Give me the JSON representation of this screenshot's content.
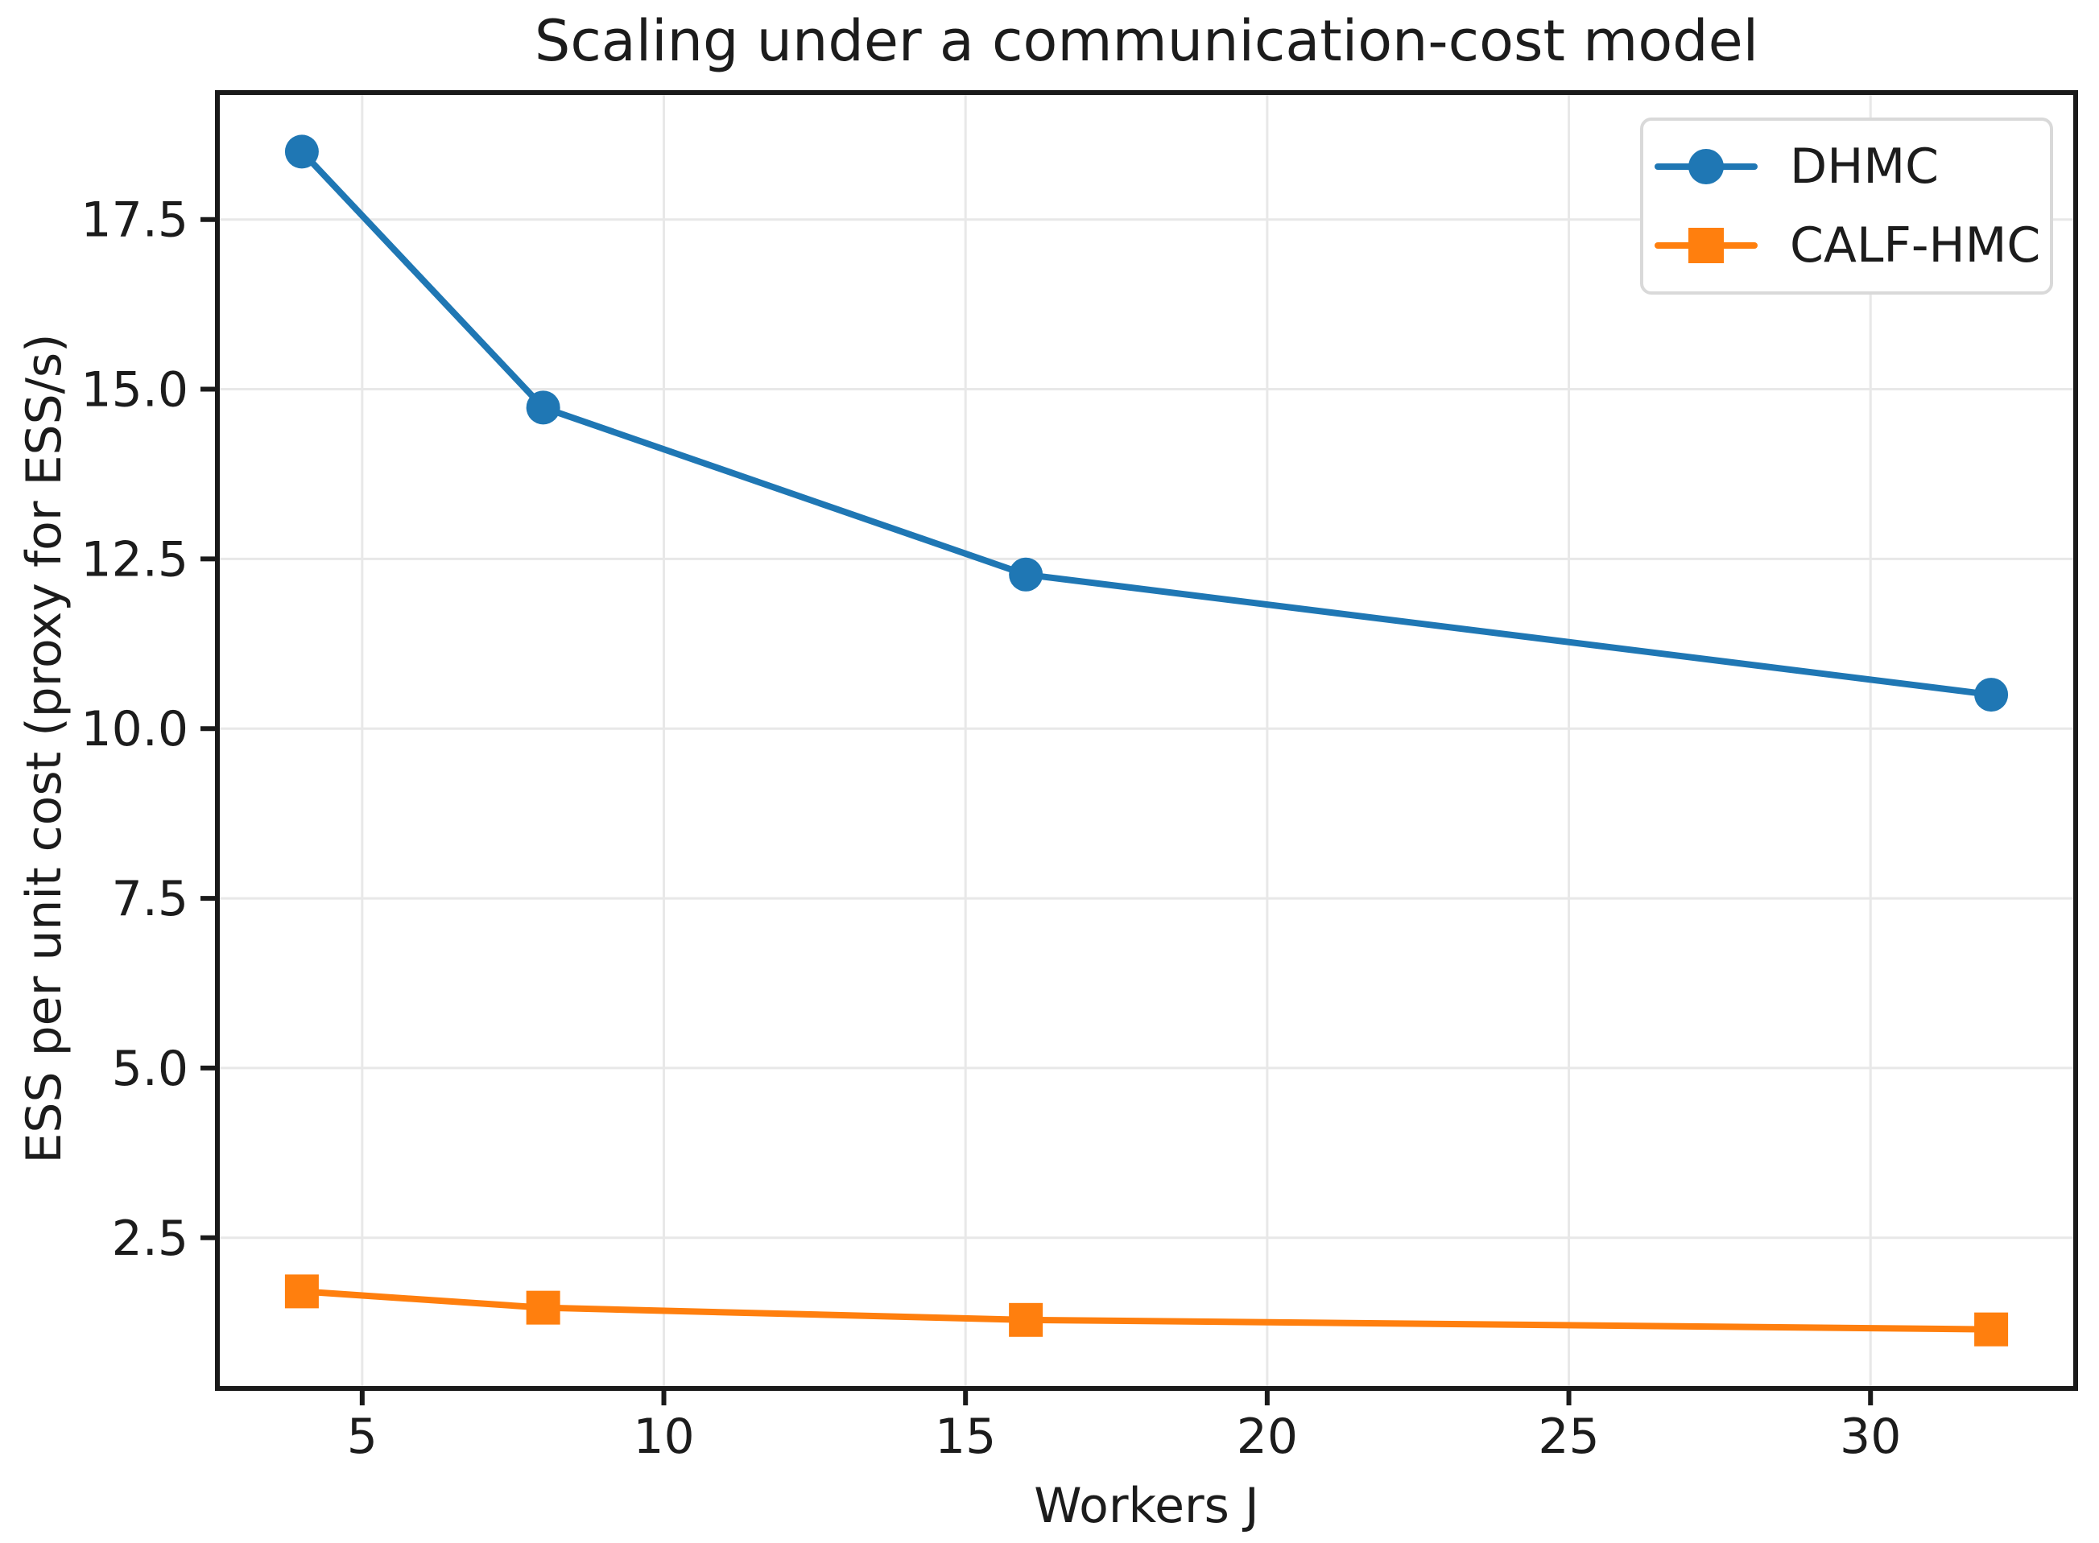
{
  "title": "Scaling under a communication-cost model",
  "chart_data": {
    "type": "line",
    "title": "Scaling under a communication-cost model",
    "xlabel": "Workers J",
    "ylabel": "ESS per unit cost (proxy for ESS/s)",
    "x": [
      4,
      8,
      16,
      32
    ],
    "series": [
      {
        "name": "DHMC",
        "color": "#1f77b4",
        "marker": "circle",
        "values": [
          18.5,
          14.73,
          12.27,
          10.5
        ]
      },
      {
        "name": "CALF-HMC",
        "color": "#ff7f0e",
        "marker": "square",
        "values": [
          1.71,
          1.47,
          1.29,
          1.15
        ]
      }
    ],
    "xlim": [
      2.6,
      33.4
    ],
    "ylim": [
      0.28,
      19.37
    ],
    "xticks": [
      5,
      10,
      15,
      20,
      25,
      30
    ],
    "xtick_labels": [
      "5",
      "10",
      "15",
      "20",
      "25",
      "30"
    ],
    "yticks": [
      2.5,
      5.0,
      7.5,
      10.0,
      12.5,
      15.0,
      17.5
    ],
    "ytick_labels": [
      "2.5",
      "5.0",
      "7.5",
      "10.0",
      "12.5",
      "15.0",
      "17.5"
    ],
    "grid": true,
    "legend_position": "upper right",
    "grid_color": "#e8e8e8",
    "axis_color": "#1a1a1a",
    "background_color": "#ffffff"
  },
  "legend": {
    "items": [
      {
        "label": "DHMC"
      },
      {
        "label": "CALF-HMC"
      }
    ]
  }
}
